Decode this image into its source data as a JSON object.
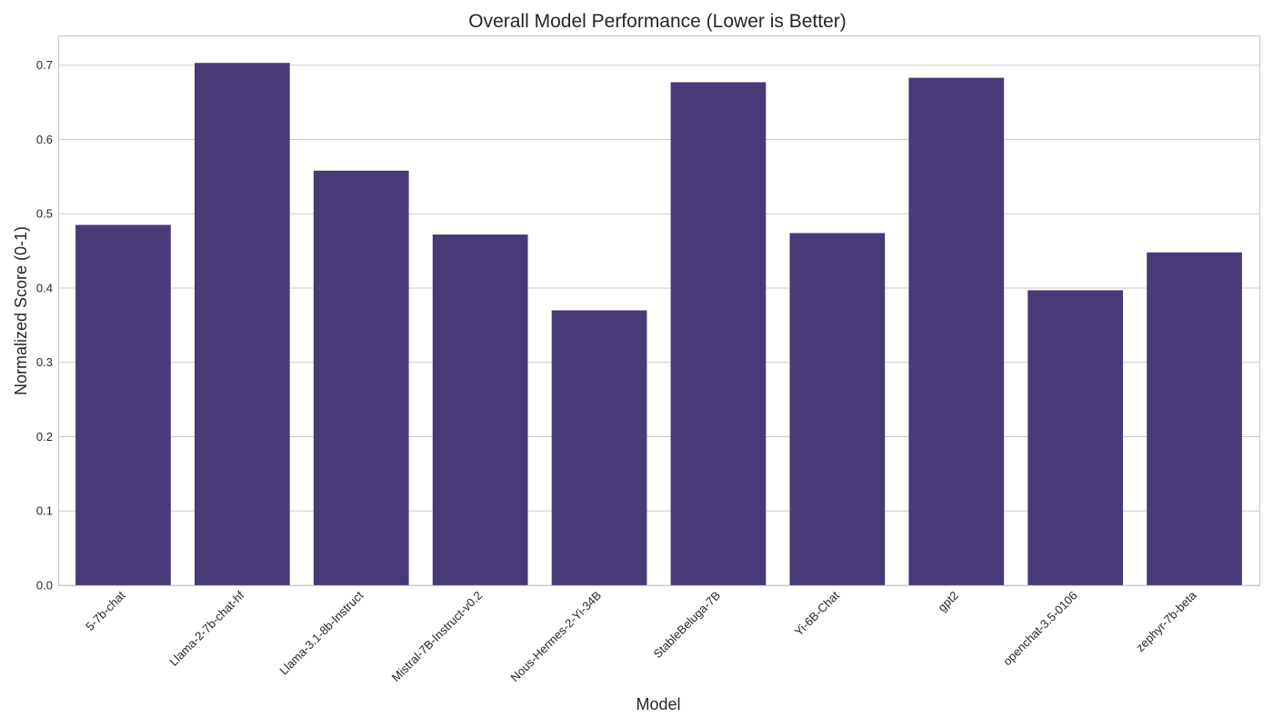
{
  "chart_data": {
    "type": "bar",
    "title": "Overall Model Performance (Lower is Better)",
    "xlabel": "Model",
    "ylabel": "Normalized Score (0-1)",
    "categories": [
      "5-7b-chat",
      "Llama-2-7b-chat-hf",
      "Llama-3.1-8b-Instruct",
      "Mistral-7B-Instruct-v0.2",
      "Nous-Hermes-2-Yi-34B",
      "StableBeluga-7B",
      "Yi-6B-Chat",
      "gpt2",
      "openchat-3.5-0106",
      "zephyr-7b-beta"
    ],
    "values": [
      0.485,
      0.703,
      0.558,
      0.472,
      0.37,
      0.677,
      0.474,
      0.683,
      0.397,
      0.448
    ],
    "ylim": [
      0,
      0.74
    ],
    "yticks": [
      "0.0",
      "0.1",
      "0.2",
      "0.3",
      "0.4",
      "0.5",
      "0.6",
      "0.7"
    ],
    "grid": true,
    "bar_color": "#483a76"
  }
}
